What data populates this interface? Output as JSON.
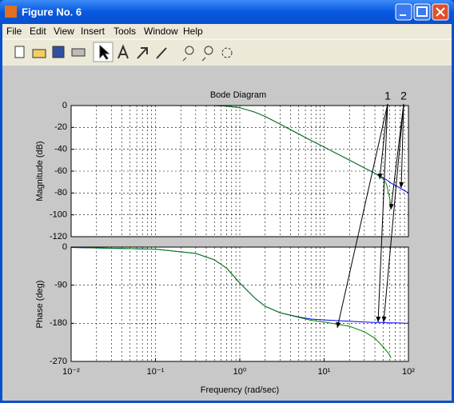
{
  "window": {
    "title": "Figure No. 6",
    "menu": [
      "File",
      "Edit",
      "View",
      "Insert",
      "Tools",
      "Window",
      "Help"
    ]
  },
  "chart_data": [
    {
      "type": "line",
      "title": "Bode Diagram",
      "y_label": "Magnitude (dB)",
      "annotations": [
        "1",
        "2"
      ],
      "x": [
        0.01,
        0.1,
        0.3,
        0.5,
        0.7,
        1,
        1.5,
        2,
        3,
        5,
        7,
        10,
        20,
        30,
        40,
        50,
        55,
        60,
        62,
        70,
        100
      ],
      "series": [
        {
          "color": "#0000ff",
          "values": [
            0,
            0,
            0,
            0,
            -0.5,
            -2,
            -6,
            -10,
            -17,
            -26,
            -32,
            -38,
            -50,
            -57,
            -62,
            -66,
            -68,
            -70,
            -71,
            -73,
            -80
          ]
        },
        {
          "color": "#008000",
          "values": [
            0,
            0,
            0,
            0,
            -0.5,
            -2,
            -6,
            -10,
            -17,
            -26,
            -32,
            -38,
            -50,
            -57,
            -62,
            -67,
            -72,
            -85,
            -95,
            null,
            null
          ]
        }
      ],
      "xlim": [
        0.01,
        100
      ],
      "log_x": true,
      "ylim": [
        -120,
        0
      ],
      "yticks": [
        0,
        -20,
        -40,
        -60,
        -80,
        -100,
        -120
      ],
      "grid": true
    },
    {
      "type": "line",
      "y_label": "Phase (deg)",
      "x_label": "Frequency  (rad/sec)",
      "x": [
        0.01,
        0.1,
        0.3,
        0.5,
        0.7,
        1,
        1.5,
        2,
        3,
        5,
        7,
        10,
        20,
        30,
        40,
        50,
        55,
        60,
        62,
        70,
        100
      ],
      "series": [
        {
          "color": "#0000ff",
          "values": [
            -1,
            -5,
            -15,
            -30,
            -50,
            -85,
            -120,
            -140,
            -155,
            -165,
            -170,
            -172,
            -175,
            -177,
            -178,
            -178,
            -179,
            -179,
            -179,
            -179,
            -180
          ]
        },
        {
          "color": "#008000",
          "values": [
            -1,
            -5,
            -15,
            -30,
            -50,
            -85,
            -120,
            -140,
            -155,
            -166,
            -173,
            -177,
            -187,
            -200,
            -215,
            -235,
            -245,
            -255,
            -262,
            null,
            null
          ]
        }
      ],
      "xlim": [
        0.01,
        100
      ],
      "log_x": true,
      "xticks": [
        {
          "value": 0.01,
          "label": "10⁻²"
        },
        {
          "value": 0.1,
          "label": "10⁻¹"
        },
        {
          "value": 1,
          "label": "10⁰"
        },
        {
          "value": 10,
          "label": "10¹"
        },
        {
          "value": 100,
          "label": "10²"
        }
      ],
      "ylim": [
        -270,
        0
      ],
      "yticks": [
        0,
        -90,
        -180,
        -270
      ],
      "grid": true
    }
  ]
}
